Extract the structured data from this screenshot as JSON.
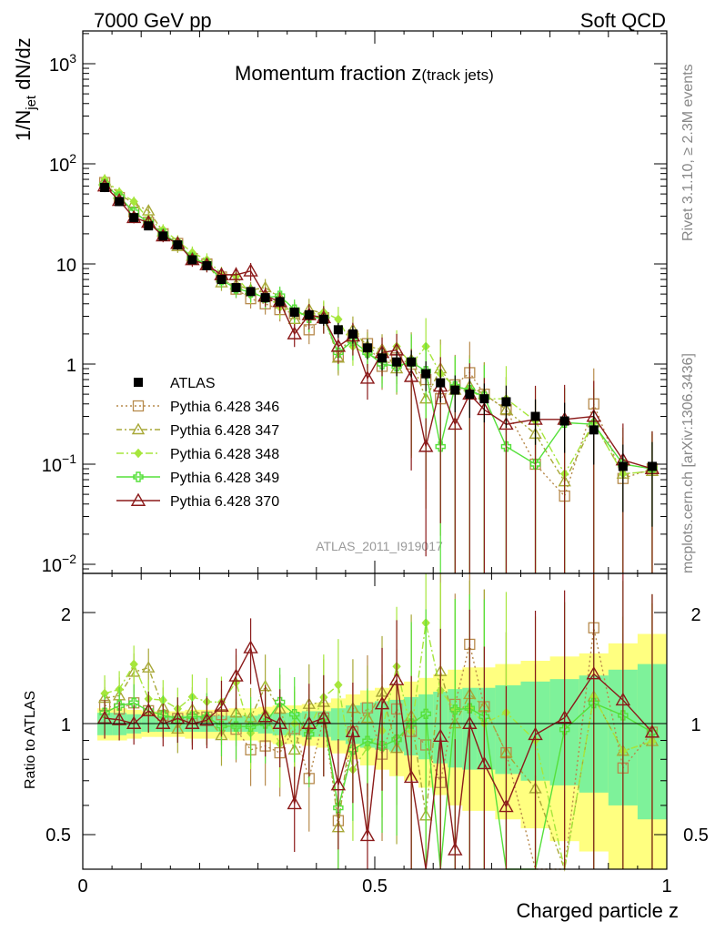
{
  "header": {
    "energy_label": "7000 GeV pp",
    "process_label": "Soft QCD",
    "plot_title": "Momentum fraction z",
    "plot_title_sub": "(track jets)",
    "analysis_id": "ATLAS_2011_I919017",
    "side_rivet": "Rivet 3.1.10, ≥ 2.3M events",
    "side_ref": "mcplots.cern.ch [arXiv:1306.3436]"
  },
  "axes": {
    "main_ylabel_prefix": "1/N",
    "main_ylabel_sub": "jet",
    "main_ylabel_suffix": " dN/dz",
    "ratio_ylabel": "Ratio to ATLAS",
    "xlabel": "Charged particle z",
    "x_ticks": [
      "0",
      "0.5",
      "1"
    ],
    "y_ticks": [
      "10^3",
      "10^2",
      "10",
      "1",
      "10^-1",
      "10^-2"
    ],
    "ratio_ticks": [
      "2",
      "1",
      "0.5"
    ]
  },
  "chart_data": {
    "type": "scatter",
    "xlim": [
      0,
      1
    ],
    "ylim_main": [
      0.008,
      2000
    ],
    "yscale_main": "log",
    "ylim_ratio": [
      0.43,
      2.35
    ],
    "yscale_ratio": "log",
    "legend_position": "left-middle",
    "x": [
      0.0375,
      0.0625,
      0.0875,
      0.1125,
      0.1375,
      0.1625,
      0.1875,
      0.2125,
      0.2375,
      0.2625,
      0.2875,
      0.3125,
      0.3375,
      0.3625,
      0.3875,
      0.4125,
      0.4375,
      0.4625,
      0.4875,
      0.5125,
      0.5375,
      0.5625,
      0.5875,
      0.6125,
      0.6375,
      0.6625,
      0.6875,
      0.725,
      0.775,
      0.825,
      0.875,
      0.925,
      0.975
    ],
    "reference": {
      "name": "ATLAS",
      "color": "#000000",
      "values": [
        58,
        42,
        29,
        24,
        19,
        15.5,
        11,
        9.6,
        7,
        5.8,
        5.3,
        4.6,
        4.2,
        3.3,
        3.1,
        2.8,
        2.2,
        2.0,
        1.45,
        1.15,
        1.05,
        1.05,
        0.8,
        0.65,
        0.55,
        0.5,
        0.45,
        0.42,
        0.3,
        0.27,
        0.22,
        0.095,
        0.095
      ],
      "band_inner": [
        0.07,
        0.07,
        0.06,
        0.05,
        0.05,
        0.05,
        0.05,
        0.05,
        0.05,
        0.05,
        0.05,
        0.06,
        0.07,
        0.07,
        0.08,
        0.08,
        0.1,
        0.12,
        0.14,
        0.15,
        0.16,
        0.18,
        0.2,
        0.22,
        0.24,
        0.25,
        0.25,
        0.27,
        0.3,
        0.32,
        0.35,
        0.4,
        0.45
      ],
      "band_outer": [
        0.1,
        0.1,
        0.09,
        0.08,
        0.08,
        0.08,
        0.09,
        0.09,
        0.09,
        0.1,
        0.1,
        0.11,
        0.12,
        0.12,
        0.13,
        0.14,
        0.17,
        0.2,
        0.23,
        0.25,
        0.28,
        0.3,
        0.33,
        0.36,
        0.4,
        0.42,
        0.42,
        0.45,
        0.48,
        0.52,
        0.55,
        0.65,
        0.75
      ]
    },
    "series": [
      {
        "name": "Pythia 6.428 346",
        "color": "#b78a4c",
        "marker": "square",
        "dash": "2,3",
        "values": [
          65,
          46,
          33,
          26,
          20,
          16,
          11.3,
          10,
          7.4,
          5.6,
          4.5,
          4.0,
          3.5,
          3.2,
          2.2,
          2.9,
          1.2,
          1.9,
          1.6,
          0.95,
          1.15,
          1.0,
          0.7,
          0.45,
          0.62,
          0.82,
          0.5,
          0.35,
          0.1,
          0.048,
          0.4,
          0.072,
          0.09
        ]
      },
      {
        "name": "Pythia 6.428 347",
        "color": "#a8a838",
        "marker": "triangle",
        "dash": "6,3,2,3",
        "values": [
          68,
          50,
          40,
          34,
          21,
          15,
          12,
          10,
          6.5,
          6.2,
          5.5,
          5.8,
          4.6,
          2.8,
          3.5,
          3.2,
          1.15,
          2.2,
          1.5,
          1.4,
          0.9,
          1.1,
          0.45,
          0.9,
          0.55,
          0.6,
          0.5,
          0.35,
          0.2,
          0.067,
          0.26,
          0.08,
          0.085
        ]
      },
      {
        "name": "Pythia 6.428 348",
        "color": "#a6e63c",
        "marker": "diamond",
        "dash": "8,3,2,3",
        "values": [
          70,
          52,
          42,
          28,
          22,
          17,
          13,
          11,
          8,
          7.5,
          5,
          4.9,
          3.7,
          3.3,
          3.0,
          3.3,
          2.8,
          1.5,
          1.25,
          1.1,
          1.5,
          1.0,
          1.5,
          0.8,
          0.6,
          0.55,
          0.45,
          0.45,
          0.27,
          0.08,
          0.26,
          0.08,
          0.085
        ]
      },
      {
        "name": "Pythia 6.428 349",
        "color": "#55e03a",
        "marker": "cross",
        "dash": "",
        "values": [
          62,
          47,
          33,
          26,
          20,
          16,
          11.5,
          10,
          6.9,
          5.7,
          5.2,
          4.6,
          4.8,
          3.5,
          2.9,
          2.9,
          1.3,
          1.7,
          1.3,
          1.0,
          0.95,
          1.05,
          0.85,
          0.15,
          0.6,
          0.55,
          0.47,
          0.15,
          0.1,
          0.26,
          0.25,
          0.1,
          0.09
        ]
      },
      {
        "name": "Pythia 6.428 370",
        "color": "#8b1a1a",
        "marker": "triangle-open",
        "dash": "",
        "values": [
          60,
          43,
          29,
          26,
          19,
          16,
          11,
          9.8,
          7.8,
          7.8,
          8.5,
          4.8,
          4.2,
          2.0,
          3.1,
          2.9,
          1.5,
          1.9,
          0.72,
          1.3,
          1.38,
          0.75,
          0.15,
          0.6,
          0.25,
          0.5,
          0.35,
          0.25,
          0.28,
          0.28,
          0.3,
          0.11,
          0.09
        ]
      }
    ]
  }
}
